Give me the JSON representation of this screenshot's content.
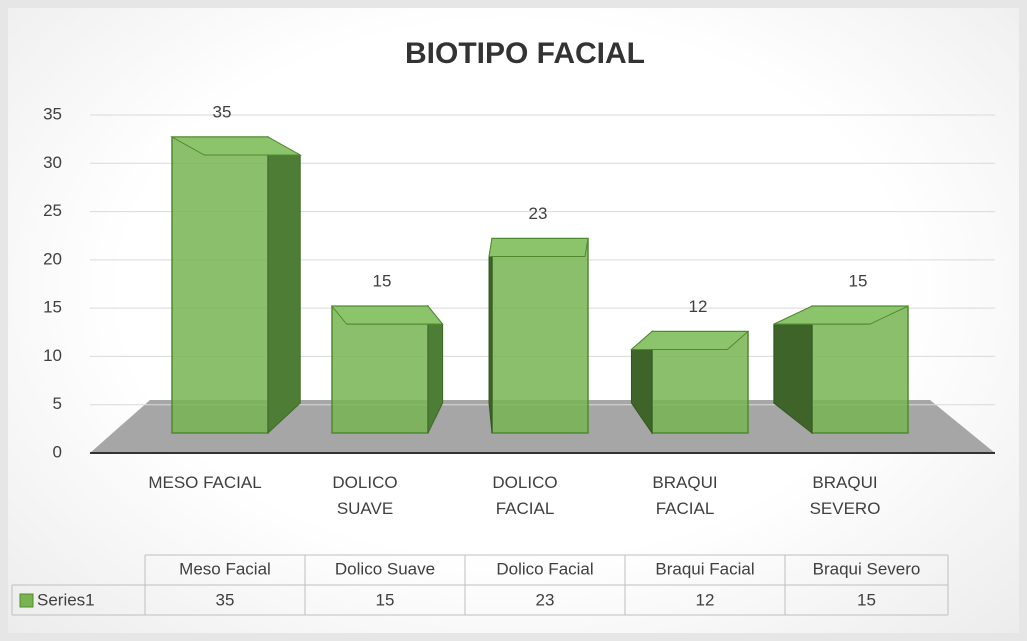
{
  "chart_data": {
    "type": "bar3d",
    "title": "BIOTIPO FACIAL",
    "categories": [
      "MESO FACIAL",
      "DOLICO SUAVE",
      "DOLICO FACIAL",
      "BRAQUI FACIAL",
      "BRAQUI SEVERO"
    ],
    "table_categories": [
      "Meso Facial",
      "Dolico Suave",
      "Dolico Facial",
      "Braqui Facial",
      "Braqui Severo"
    ],
    "series": [
      {
        "name": "Series1",
        "color": "#78b452",
        "values": [
          35,
          15,
          23,
          12,
          15
        ]
      }
    ],
    "ylim": [
      0,
      35
    ],
    "yticks": [
      0,
      5,
      10,
      15,
      20,
      25,
      30,
      35
    ],
    "grid": true
  }
}
